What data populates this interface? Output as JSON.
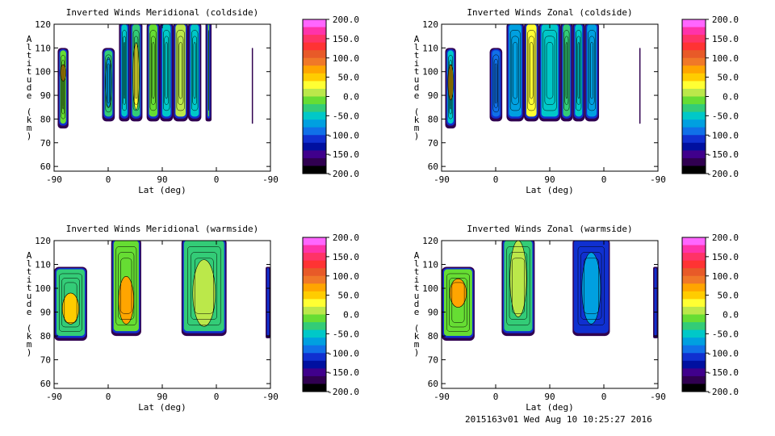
{
  "footer": "2015163v01 Wed Aug 10 10:25:27 2016",
  "colorbar": {
    "labels": [
      "200.0",
      "150.0",
      "100.0",
      "50.0",
      "0.0",
      "-50.0",
      "-100.0",
      "-150.0",
      "-200.0"
    ],
    "colors": [
      "#ff66ff",
      "#ff33aa",
      "#ff3366",
      "#ff3333",
      "#e85a28",
      "#f07828",
      "#ffa500",
      "#ffcc00",
      "#ffff33",
      "#bbe84a",
      "#66dd33",
      "#33cc77",
      "#00c8c8",
      "#00a0e0",
      "#1070e8",
      "#1030d0",
      "#0010a0",
      "#40008c",
      "#300050",
      "#000000"
    ]
  },
  "chart_data": [
    {
      "type": "heatmap",
      "title": "Inverted Winds Meridional (coldside)",
      "xlabel": "Lat (deg)",
      "ylabel": "Altitude (km)",
      "xticks": [
        "-90",
        "0",
        "90",
        "0",
        "-90"
      ],
      "yticks": [
        "60",
        "70",
        "80",
        "90",
        "100",
        "110",
        "120"
      ],
      "ylim": [
        58,
        120
      ],
      "value_range": [
        -200,
        200
      ],
      "bands": [
        {
          "x": [
            -84,
            -66
          ],
          "bottom": 76,
          "top": 110,
          "fill": "#66dd33",
          "core": {
            "alt": [
              96,
              103
            ],
            "fill": "#ffcc00"
          }
        },
        {
          "x": [
            -10,
            11
          ],
          "bottom": 79,
          "top": 110,
          "fill": "#33cc77",
          "core": {
            "alt": [
              85,
              106
            ],
            "fill": "#00a0e0"
          }
        },
        {
          "x": [
            18,
            36
          ],
          "bottom": 79,
          "top": 121,
          "fill": "#00c8c8"
        },
        {
          "x": [
            36,
            57
          ],
          "bottom": 79,
          "top": 121,
          "fill": "#33cc77",
          "core": {
            "alt": [
              84,
              112
            ],
            "fill": "#ffff33"
          }
        },
        {
          "x": [
            64,
            86
          ],
          "bottom": 79,
          "top": 121,
          "fill": "#66dd33"
        },
        {
          "x": [
            86,
            108
          ],
          "bottom": 79,
          "top": 121,
          "fill": "#00c8c8"
        },
        {
          "x": [
            108,
            133
          ],
          "bottom": 79,
          "top": 121,
          "fill": "#bbe84a"
        },
        {
          "x": [
            133,
            155
          ],
          "bottom": 79,
          "top": 121,
          "fill": "#00c8c8"
        },
        {
          "x": [
            162,
            172
          ],
          "bottom": 79,
          "top": 121,
          "fill": "#66dd33"
        },
        {
          "x": [
            239,
            241
          ],
          "bottom": 78,
          "top": 110,
          "fill": "#000000"
        }
      ]
    },
    {
      "type": "heatmap",
      "title": "Inverted Winds Zonal (coldside)",
      "xlabel": "Lat (deg)",
      "ylabel": "Altitude (km)",
      "xticks": [
        "-90",
        "0",
        "90",
        "0",
        "-90"
      ],
      "yticks": [
        "60",
        "70",
        "80",
        "90",
        "100",
        "110",
        "120"
      ],
      "ylim": [
        58,
        120
      ],
      "value_range": [
        -200,
        200
      ],
      "bands": [
        {
          "x": [
            -84,
            -66
          ],
          "bottom": 76,
          "top": 110,
          "fill": "#00c8c8",
          "core": {
            "alt": [
              88,
              103
            ],
            "fill": "#ffcc00"
          }
        },
        {
          "x": [
            -10,
            11
          ],
          "bottom": 79,
          "top": 110,
          "fill": "#1070e8"
        },
        {
          "x": [
            18,
            47
          ],
          "bottom": 79,
          "top": 121,
          "fill": "#00a0e0"
        },
        {
          "x": [
            47,
            72
          ],
          "bottom": 79,
          "top": 121,
          "fill": "#ffff33"
        },
        {
          "x": [
            72,
            108
          ],
          "bottom": 79,
          "top": 121,
          "fill": "#00c8c8"
        },
        {
          "x": [
            108,
            128
          ],
          "bottom": 79,
          "top": 121,
          "fill": "#33cc77"
        },
        {
          "x": [
            128,
            148
          ],
          "bottom": 79,
          "top": 121,
          "fill": "#00c8c8"
        },
        {
          "x": [
            148,
            172
          ],
          "bottom": 79,
          "top": 121,
          "fill": "#00a0e0"
        },
        {
          "x": [
            239,
            241
          ],
          "bottom": 78,
          "top": 110,
          "fill": "#000000"
        }
      ]
    },
    {
      "type": "heatmap",
      "title": "Inverted Winds Meridional (warmside)",
      "xlabel": "Lat (deg)",
      "ylabel": "Altitude (km)",
      "xticks": [
        "-90",
        "0",
        "90",
        "0",
        "-90"
      ],
      "yticks": [
        "60",
        "70",
        "80",
        "90",
        "100",
        "110",
        "120"
      ],
      "ylim": [
        58,
        120
      ],
      "value_range": [
        -200,
        200
      ],
      "bands": [
        {
          "x": [
            -90,
            -35
          ],
          "bottom": 78,
          "top": 109,
          "fill": "#33cc77",
          "core": {
            "alt": [
              85,
              98
            ],
            "fill": "#ffcc00"
          }
        },
        {
          "x": [
            5,
            55
          ],
          "bottom": 80,
          "top": 121,
          "fill": "#66dd33",
          "core": {
            "alt": [
              85,
              105
            ],
            "fill": "#ffa500"
          }
        },
        {
          "x": [
            122,
            197
          ],
          "bottom": 80,
          "top": 121,
          "fill": "#33cc77",
          "core": {
            "alt": [
              84,
              112
            ],
            "fill": "#bbe84a"
          }
        },
        {
          "x": [
            262,
            270
          ],
          "bottom": 79,
          "top": 109,
          "fill": "#000000"
        }
      ]
    },
    {
      "type": "heatmap",
      "title": "Inverted Winds Zonal (warmside)",
      "xlabel": "Lat (deg)",
      "ylabel": "Altitude (km)",
      "xticks": [
        "-90",
        "0",
        "90",
        "0",
        "-90"
      ],
      "yticks": [
        "60",
        "70",
        "80",
        "90",
        "100",
        "110",
        "120"
      ],
      "ylim": [
        58,
        120
      ],
      "value_range": [
        -200,
        200
      ],
      "bands": [
        {
          "x": [
            -90,
            -35
          ],
          "bottom": 78,
          "top": 109,
          "fill": "#66dd33",
          "core": {
            "alt": [
              92,
              104
            ],
            "fill": "#ffa500"
          }
        },
        {
          "x": [
            10,
            65
          ],
          "bottom": 80,
          "top": 121,
          "fill": "#33cc77",
          "core": {
            "alt": [
              88,
              120
            ],
            "fill": "#bbe84a"
          }
        },
        {
          "x": [
            128,
            190
          ],
          "bottom": 80,
          "top": 121,
          "fill": "#1030d0",
          "core": {
            "alt": [
              85,
              115
            ],
            "fill": "#00a0e0"
          }
        },
        {
          "x": [
            262,
            270
          ],
          "bottom": 79,
          "top": 109,
          "fill": "#000000"
        }
      ]
    }
  ]
}
